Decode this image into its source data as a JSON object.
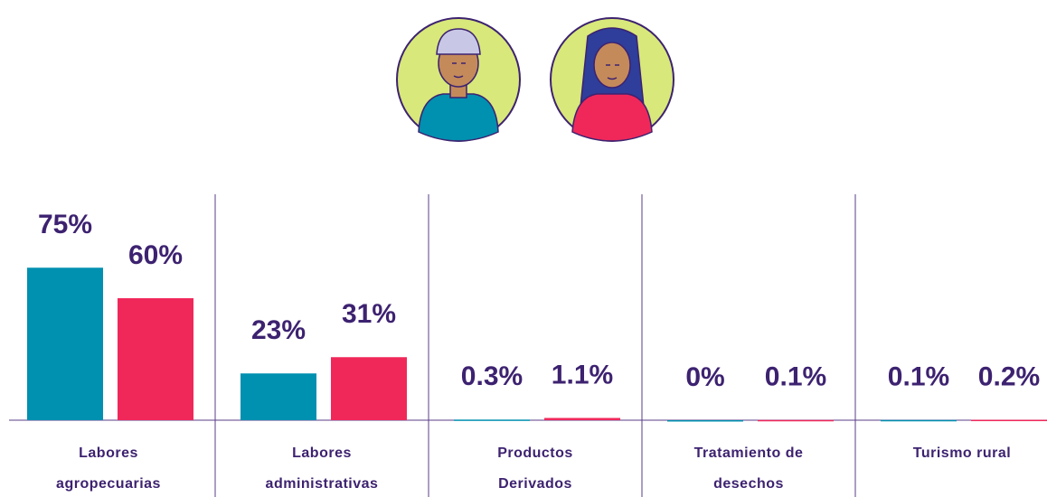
{
  "chart_data": {
    "type": "bar",
    "categories": [
      [
        "Labores",
        "agropecuarias"
      ],
      [
        "Labores",
        "administrativas"
      ],
      [
        "Productos",
        "Derivados"
      ],
      [
        "Tratamiento de",
        "desechos"
      ],
      [
        "Turismo rural"
      ]
    ],
    "series": [
      {
        "color": "#0090b0",
        "values": [
          75,
          23,
          0.3,
          0,
          0.1
        ],
        "value_labels": [
          "75%",
          "23%",
          "0.3%",
          "0%",
          "0.1%"
        ]
      },
      {
        "color": "#f0285a",
        "values": [
          60,
          31,
          1.1,
          0.1,
          0.2
        ],
        "value_labels": [
          "60%",
          "31%",
          "1.1%",
          "0.1%",
          "0.2%"
        ]
      }
    ],
    "ylim": [
      0,
      100
    ]
  }
}
